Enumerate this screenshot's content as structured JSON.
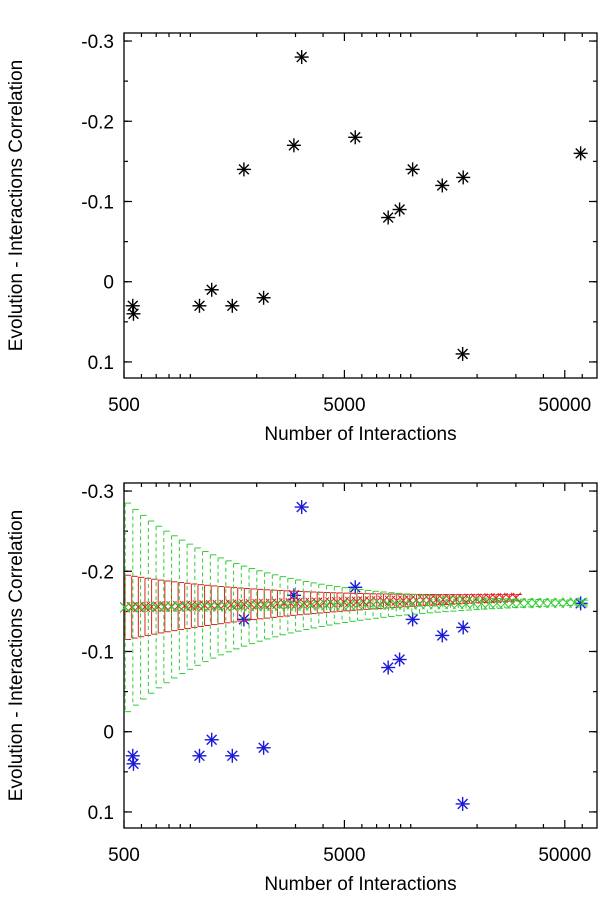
{
  "chart_data": [
    {
      "type": "scatter",
      "xlabel": "Number of Interactions",
      "ylabel": "Evolution - Interactions Correlation",
      "xscale": "log",
      "xlim": [
        500,
        70000
      ],
      "ylim": [
        0.12,
        -0.31
      ],
      "y_axis_inverted": true,
      "xticks": [
        500,
        5000,
        50000
      ],
      "xtick_labels": [
        "500",
        "5000",
        "50000"
      ],
      "yticks": [
        -0.3,
        -0.2,
        -0.1,
        0,
        0.1
      ],
      "ytick_labels": [
        "-0.3",
        "-0.2",
        "-0.1",
        "0",
        "0.1"
      ],
      "grid": false,
      "series": [
        {
          "marker": "asterisk",
          "color": "#000000",
          "points": [
            [
              548,
              0.03
            ],
            [
              552,
              0.04
            ],
            [
              1100,
              0.03
            ],
            [
              1250,
              0.01
            ],
            [
              1550,
              0.03
            ],
            [
              1750,
              -0.14
            ],
            [
              2150,
              0.02
            ],
            [
              2950,
              -0.17
            ],
            [
              3200,
              -0.28
            ],
            [
              5600,
              -0.18
            ],
            [
              7900,
              -0.08
            ],
            [
              8900,
              -0.09
            ],
            [
              10200,
              -0.14
            ],
            [
              13900,
              -0.12
            ],
            [
              17300,
              -0.13
            ],
            [
              17200,
              0.09
            ],
            [
              59000,
              -0.16
            ]
          ]
        }
      ]
    },
    {
      "type": "scatter",
      "xlabel": "Number of Interactions",
      "ylabel": "Evolution - Interactions Correlation",
      "xscale": "log",
      "xlim": [
        500,
        70000
      ],
      "ylim": [
        0.12,
        -0.31
      ],
      "y_axis_inverted": true,
      "xticks": [
        500,
        5000,
        50000
      ],
      "xtick_labels": [
        "500",
        "5000",
        "50000"
      ],
      "yticks": [
        -0.3,
        -0.2,
        -0.1,
        0,
        0.1
      ],
      "ytick_labels": [
        "-0.3",
        "-0.2",
        "-0.1",
        "0",
        "0.1"
      ],
      "grid": false,
      "series": [
        {
          "marker": "asterisk",
          "color": "#1a1ad8",
          "points": [
            [
              548,
              0.03
            ],
            [
              552,
              0.04
            ],
            [
              1100,
              0.03
            ],
            [
              1250,
              0.01
            ],
            [
              1550,
              0.03
            ],
            [
              1750,
              -0.14
            ],
            [
              2150,
              0.02
            ],
            [
              2950,
              -0.17
            ],
            [
              3200,
              -0.28
            ],
            [
              5600,
              -0.18
            ],
            [
              7900,
              -0.08
            ],
            [
              8900,
              -0.09
            ],
            [
              10200,
              -0.14
            ],
            [
              13900,
              -0.12
            ],
            [
              17300,
              -0.13
            ],
            [
              17200,
              0.09
            ],
            [
              59000,
              -0.16
            ]
          ]
        },
        {
          "marker": "x",
          "color": "#e02020",
          "error_bars": true,
          "x_range": [
            500,
            30000
          ],
          "mean_y": -0.155,
          "mean_y_end": -0.167,
          "half_width_start": 0.04,
          "half_width_end": 0.004
        },
        {
          "marker": "x",
          "color": "#33cc33",
          "error_bars": true,
          "dashed": true,
          "x_range": [
            500,
            60000
          ],
          "mean_y": -0.155,
          "mean_y_end": -0.161,
          "half_width_start": 0.13,
          "half_width_end": 0.003
        }
      ]
    }
  ]
}
